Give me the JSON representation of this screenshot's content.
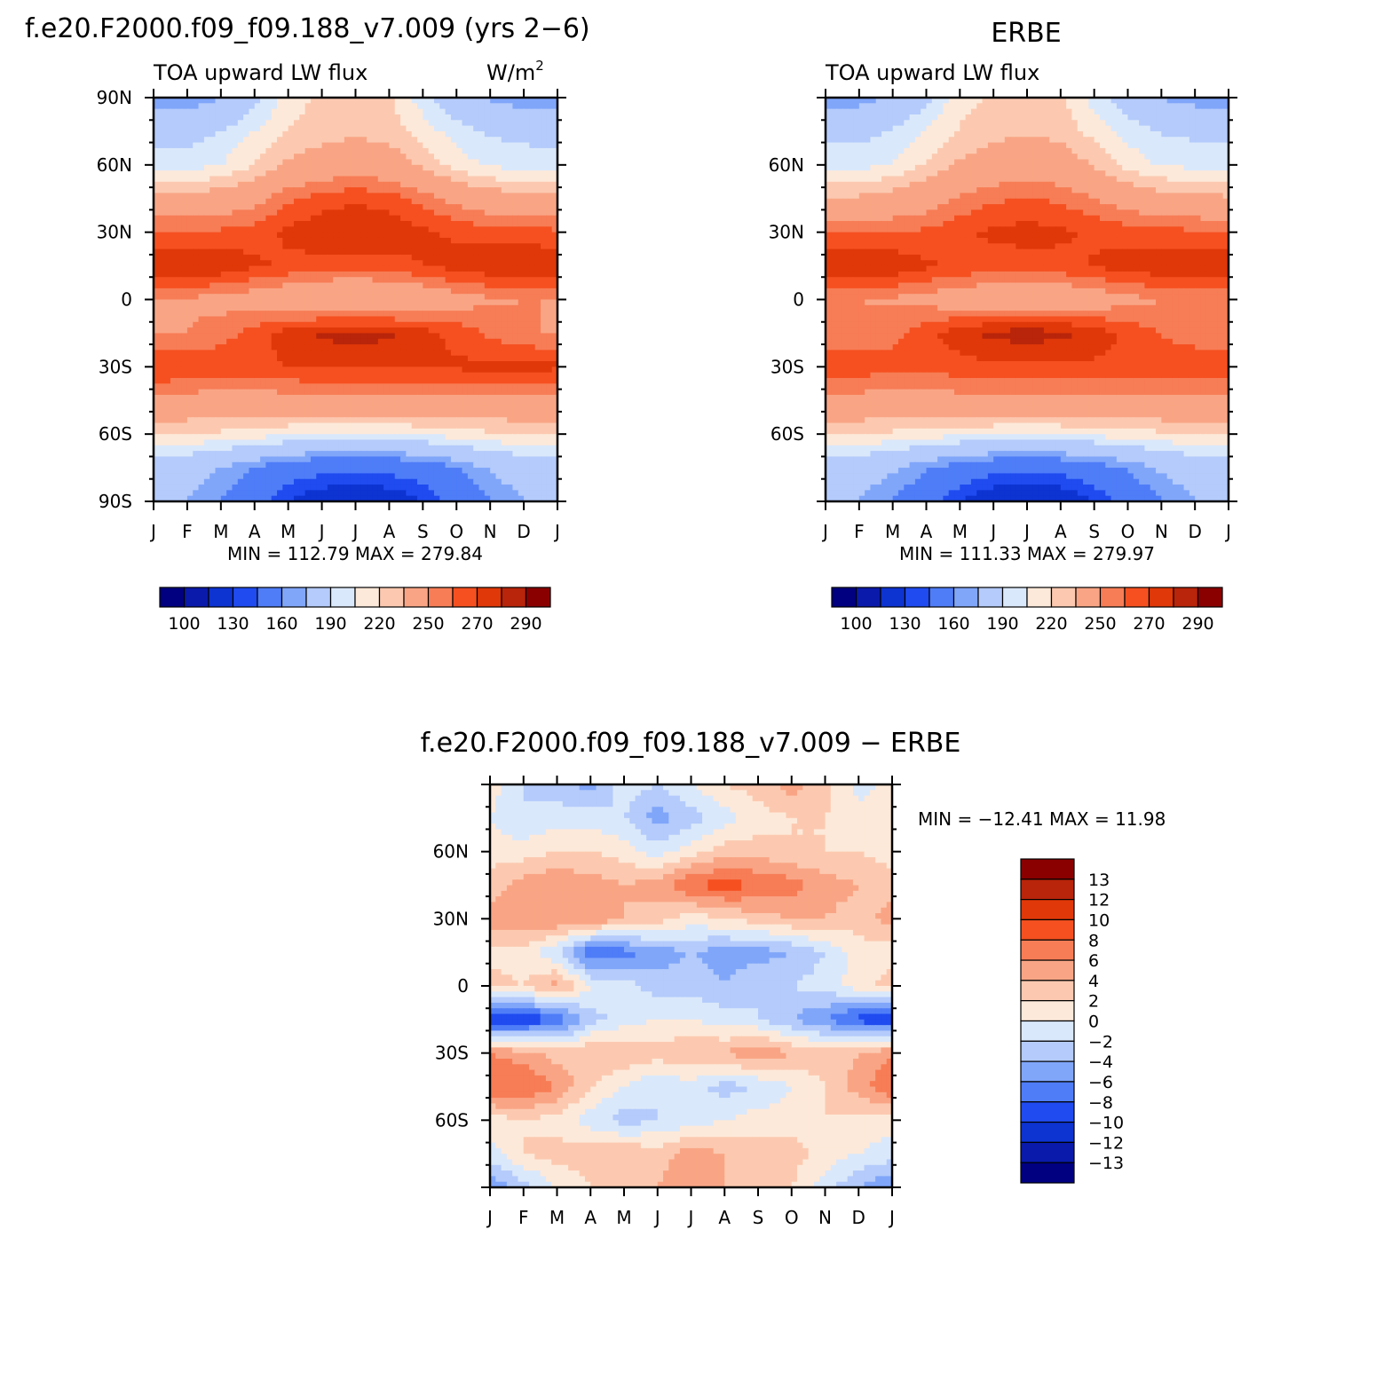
{
  "page": {
    "case_title": "f.e20.F2000.f09_f09.188_v7.009 (yrs 2−6)",
    "obs_title": "ERBE",
    "diff_title": "f.e20.F2000.f09_f09.188_v7.009 − ERBE"
  },
  "colors": {
    "seq_levels": [
      "#000080",
      "#0a1aaa",
      "#0d33d1",
      "#1f4bf0",
      "#4f7df8",
      "#80a6fa",
      "#b4cbfb",
      "#dae8fb",
      "#fde9d9",
      "#fcc9b0",
      "#f9a585",
      "#f77d56",
      "#f65020",
      "#e03808",
      "#b8250a",
      "#8a0000"
    ],
    "div_levels": [
      "#8a0000",
      "#b8250a",
      "#e03808",
      "#f65020",
      "#f77d56",
      "#f9a585",
      "#fcc9b0",
      "#fde9d9",
      "#dae8fb",
      "#b4cbfb",
      "#80a6fa",
      "#4f7df8",
      "#1f4bf0",
      "#0d33d1",
      "#0a1aaa",
      "#000080"
    ]
  },
  "chart_data": [
    {
      "type": "heatmap",
      "name": "model",
      "variable_label": "TOA upward LW flux",
      "units_label": "W/m",
      "units_sup": "2",
      "x_categories": [
        "J",
        "F",
        "M",
        "A",
        "M",
        "J",
        "J",
        "A",
        "S",
        "O",
        "N",
        "D",
        "J"
      ],
      "y_ticks": [
        "90N",
        "60N",
        "30N",
        "0",
        "30S",
        "60S",
        "90S"
      ],
      "min_max": "MIN = 112.79 MAX = 279.84",
      "colorbar_labels": [
        "100",
        "130",
        "160",
        "190",
        "220",
        "250",
        "270",
        "290"
      ],
      "levels": [
        100,
        110,
        130,
        140,
        160,
        170,
        190,
        200,
        210,
        220,
        240,
        250,
        260,
        270,
        280,
        290
      ],
      "xlim": [
        0,
        12
      ],
      "ylim": [
        -90,
        90
      ],
      "x": [
        0,
        1,
        2,
        3,
        4,
        5,
        6,
        7,
        8,
        9,
        10,
        11,
        12
      ],
      "lat": [
        90,
        75,
        60,
        45,
        30,
        15,
        0,
        -15,
        -30,
        -45,
        -60,
        -75,
        -90
      ],
      "z": [
        [
          160,
          162,
          170,
          185,
          205,
          212,
          215,
          212,
          195,
          180,
          168,
          162,
          160
        ],
        [
          185,
          185,
          190,
          200,
          210,
          215,
          218,
          215,
          205,
          195,
          188,
          186,
          185
        ],
        [
          195,
          195,
          200,
          210,
          222,
          228,
          230,
          228,
          218,
          205,
          198,
          196,
          195
        ],
        [
          225,
          225,
          228,
          235,
          248,
          255,
          258,
          255,
          245,
          235,
          228,
          226,
          225
        ],
        [
          252,
          252,
          252,
          255,
          262,
          268,
          270,
          268,
          262,
          258,
          255,
          254,
          252
        ],
        [
          270,
          270,
          268,
          262,
          258,
          255,
          254,
          256,
          260,
          264,
          268,
          270,
          270
        ],
        [
          240,
          238,
          236,
          232,
          225,
          220,
          218,
          220,
          226,
          234,
          238,
          240,
          240
        ],
        [
          238,
          240,
          245,
          255,
          265,
          272,
          274,
          272,
          265,
          256,
          248,
          242,
          238
        ],
        [
          262,
          260,
          258,
          258,
          260,
          262,
          262,
          262,
          262,
          262,
          263,
          264,
          262
        ],
        [
          235,
          234,
          232,
          232,
          234,
          236,
          236,
          236,
          236,
          236,
          236,
          235,
          235
        ],
        [
          210,
          210,
          208,
          205,
          202,
          200,
          198,
          200,
          202,
          205,
          208,
          210,
          210
        ],
        [
          180,
          178,
          170,
          160,
          150,
          145,
          143,
          145,
          150,
          160,
          172,
          178,
          180
        ],
        [
          175,
          170,
          160,
          145,
          130,
          120,
          115,
          120,
          130,
          145,
          160,
          170,
          175
        ]
      ]
    },
    {
      "type": "heatmap",
      "name": "obs",
      "variable_label": "TOA upward LW flux",
      "x_categories": [
        "J",
        "F",
        "M",
        "A",
        "M",
        "J",
        "J",
        "A",
        "S",
        "O",
        "N",
        "D",
        "J"
      ],
      "y_ticks": [
        "60N",
        "30N",
        "0",
        "30S",
        "60S"
      ],
      "min_max": "MIN = 111.33 MAX = 279.97",
      "colorbar_labels": [
        "100",
        "130",
        "160",
        "190",
        "220",
        "250",
        "270",
        "290"
      ],
      "levels": [
        100,
        110,
        130,
        140,
        160,
        170,
        190,
        200,
        210,
        220,
        240,
        250,
        260,
        270,
        280,
        290
      ],
      "xlim": [
        0,
        12
      ],
      "ylim": [
        -90,
        90
      ],
      "x": [
        0,
        1,
        2,
        3,
        4,
        5,
        6,
        7,
        8,
        9,
        10,
        11,
        12
      ],
      "lat": [
        90,
        75,
        60,
        45,
        30,
        15,
        0,
        -15,
        -30,
        -45,
        -60,
        -75,
        -90
      ],
      "z": [
        [
          162,
          164,
          172,
          187,
          206,
          212,
          215,
          212,
          196,
          181,
          169,
          164,
          162
        ],
        [
          186,
          186,
          191,
          201,
          211,
          216,
          219,
          216,
          206,
          196,
          189,
          187,
          186
        ],
        [
          196,
          196,
          201,
          211,
          222,
          228,
          230,
          228,
          219,
          206,
          199,
          197,
          196
        ],
        [
          222,
          222,
          226,
          232,
          242,
          248,
          250,
          248,
          240,
          232,
          226,
          224,
          222
        ],
        [
          250,
          250,
          250,
          252,
          258,
          262,
          264,
          262,
          258,
          255,
          253,
          252,
          250
        ],
        [
          271,
          270,
          268,
          262,
          258,
          256,
          255,
          257,
          261,
          265,
          268,
          270,
          271
        ],
        [
          242,
          240,
          238,
          235,
          230,
          226,
          225,
          226,
          230,
          236,
          240,
          242,
          242
        ],
        [
          240,
          242,
          247,
          257,
          266,
          273,
          275,
          273,
          266,
          257,
          249,
          243,
          240
        ],
        [
          258,
          256,
          254,
          254,
          256,
          258,
          258,
          258,
          258,
          258,
          259,
          260,
          258
        ],
        [
          236,
          235,
          233,
          233,
          235,
          237,
          237,
          237,
          237,
          237,
          237,
          236,
          236
        ],
        [
          210,
          210,
          208,
          205,
          203,
          201,
          199,
          201,
          203,
          206,
          208,
          210,
          210
        ],
        [
          180,
          178,
          172,
          162,
          152,
          146,
          144,
          146,
          152,
          162,
          172,
          178,
          180
        ],
        [
          176,
          170,
          160,
          146,
          130,
          118,
          113,
          118,
          130,
          146,
          160,
          170,
          176
        ]
      ]
    },
    {
      "type": "heatmap",
      "name": "difference",
      "x_categories": [
        "J",
        "F",
        "M",
        "A",
        "M",
        "J",
        "J",
        "A",
        "S",
        "O",
        "N",
        "D",
        "J"
      ],
      "y_ticks": [
        "60N",
        "30N",
        "0",
        "30S",
        "60S"
      ],
      "min_max": "MIN = −12.41 MAX =   11.98",
      "colorbar_labels": [
        "13",
        "12",
        "10",
        "8",
        "6",
        "4",
        "2",
        "0",
        "−2",
        "−4",
        "−6",
        "−8",
        "−10",
        "−12",
        "−13"
      ],
      "levels": [
        -13,
        -12,
        -10,
        -8,
        -6,
        -4,
        -2,
        0,
        2,
        4,
        6,
        8,
        10,
        12,
        13
      ],
      "xlim": [
        0,
        12
      ],
      "ylim": [
        -90,
        90
      ],
      "x": [
        0,
        1,
        2,
        3,
        4,
        5,
        6,
        7,
        8,
        9,
        10,
        11,
        12
      ],
      "lat": [
        90,
        75,
        60,
        45,
        30,
        15,
        0,
        -15,
        -30,
        -45,
        -60,
        -75,
        -90
      ],
      "z": [
        [
          1,
          -2,
          -3,
          -5,
          -1,
          -2,
          0,
          2,
          3,
          5,
          3,
          -1,
          1
        ],
        [
          0,
          -2,
          -1,
          -1,
          -2,
          -5,
          -3,
          -1,
          1,
          2,
          2,
          1,
          0
        ],
        [
          1,
          1,
          2,
          2,
          1,
          -1,
          1,
          3,
          3,
          2,
          2,
          2,
          1
        ],
        [
          3,
          5,
          6,
          5,
          4,
          5,
          8,
          9,
          8,
          7,
          5,
          4,
          3
        ],
        [
          5,
          6,
          6,
          6,
          4,
          3,
          1,
          2,
          3,
          4,
          4,
          3,
          5
        ],
        [
          1,
          1,
          -2,
          -8,
          -7,
          -5,
          -4,
          -5,
          -5,
          -4,
          -2,
          1,
          1
        ],
        [
          3,
          2,
          5,
          0,
          -1,
          -3,
          -3,
          -4,
          -2,
          -2,
          -1,
          1,
          3
        ],
        [
          -10,
          -10,
          -8,
          -3,
          -1,
          0,
          0,
          -1,
          -2,
          -4,
          -6,
          -9,
          -10
        ],
        [
          6,
          5,
          3,
          4,
          4,
          3,
          4,
          4,
          6,
          4,
          3,
          4,
          6
        ],
        [
          8,
          8,
          6,
          2,
          0,
          -2,
          -1,
          -3,
          -2,
          0,
          2,
          5,
          8
        ],
        [
          1,
          2,
          1,
          -1,
          -3,
          -2,
          -1,
          0,
          1,
          1,
          2,
          1,
          1
        ],
        [
          -1,
          2,
          3,
          3,
          4,
          3,
          5,
          4,
          3,
          3,
          1,
          0,
          -1
        ],
        [
          -6,
          -3,
          0,
          2,
          4,
          4,
          6,
          4,
          3,
          2,
          -1,
          -4,
          -6
        ]
      ]
    }
  ]
}
